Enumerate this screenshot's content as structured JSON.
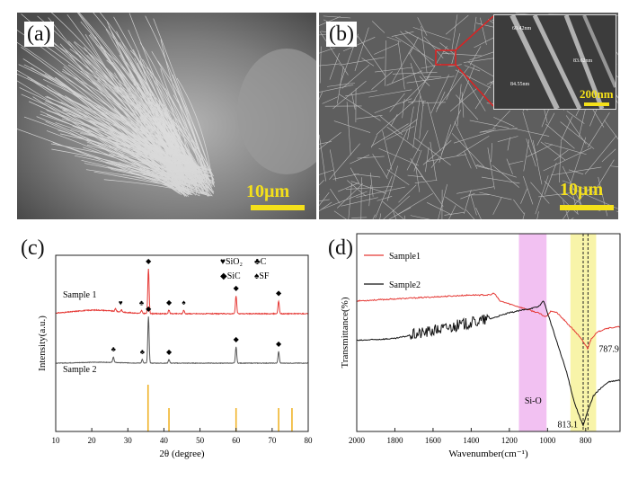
{
  "panels": {
    "a": {
      "letter": "(a)",
      "scale": "10µm"
    },
    "b": {
      "letter": "(b)",
      "scale": "10µm",
      "inset": {
        "scale": "200nm",
        "measures": [
          "60.42nm",
          "83.62nm",
          "84.55nm"
        ]
      }
    },
    "c": {
      "letter": "(c)"
    },
    "d": {
      "letter": "(d)"
    }
  },
  "chart_data": [
    {
      "type": "line",
      "panel": "c",
      "xlabel": "2θ (degree)",
      "ylabel": "Intensity(a.u.)",
      "xlim": [
        10,
        80
      ],
      "xticks": [
        10,
        20,
        30,
        40,
        50,
        60,
        70,
        80
      ],
      "legend": [
        {
          "symbol": "♥",
          "label": "SiO₂"
        },
        {
          "symbol": "♣",
          "label": "C"
        },
        {
          "symbol": "◆",
          "label": "SiC"
        },
        {
          "symbol": "♠",
          "label": "SF"
        }
      ],
      "series": [
        {
          "name": "Sample 1",
          "color": "#e53935",
          "baseline": 0.18,
          "hump": {
            "center": 21,
            "width": 6,
            "height": 0.05
          },
          "peaks": [
            [
              26.6,
              0.04
            ],
            [
              28.2,
              0.03
            ],
            [
              33.8,
              0.04
            ],
            [
              35.7,
              0.62
            ],
            [
              41.4,
              0.05
            ],
            [
              45.5,
              0.05
            ],
            [
              60.0,
              0.25
            ],
            [
              71.8,
              0.18
            ]
          ]
        },
        {
          "name": "Sample 2",
          "color": "#555555",
          "baseline": 0.0,
          "hump": {
            "center": 22,
            "width": 5,
            "height": 0.02
          },
          "peaks": [
            [
              26.0,
              0.12
            ],
            [
              34.0,
              0.08
            ],
            [
              35.7,
              1.0
            ],
            [
              41.4,
              0.08
            ],
            [
              60.0,
              0.35
            ],
            [
              71.8,
              0.25
            ]
          ]
        }
      ],
      "reference_lines": [
        35.6,
        41.4,
        60.0,
        71.8,
        75.5
      ],
      "reference_color": "#f0b429",
      "markers": [
        {
          "x": 28,
          "symbol": "♥",
          "series": "Sample 1"
        },
        {
          "x": 33.8,
          "symbol": "♣",
          "series": "Sample 1"
        },
        {
          "x": 35.7,
          "symbol": "◆",
          "series": "Sample 1"
        },
        {
          "x": 41.4,
          "symbol": "◆",
          "series": "Sample 1"
        },
        {
          "x": 45.5,
          "symbol": "♠",
          "series": "Sample 1"
        },
        {
          "x": 60.0,
          "symbol": "◆",
          "series": "Sample 1"
        },
        {
          "x": 71.8,
          "symbol": "◆",
          "series": "Sample 1"
        },
        {
          "x": 26.0,
          "symbol": "♣",
          "series": "Sample 2"
        },
        {
          "x": 34.0,
          "symbol": "♣",
          "series": "Sample 2"
        },
        {
          "x": 35.7,
          "symbol": "◆",
          "series": "Sample 2"
        },
        {
          "x": 41.4,
          "symbol": "◆",
          "series": "Sample 2"
        },
        {
          "x": 60.0,
          "symbol": "◆",
          "series": "Sample 2"
        },
        {
          "x": 71.8,
          "symbol": "◆",
          "series": "Sample 2"
        }
      ]
    },
    {
      "type": "line",
      "panel": "d",
      "xlabel": "Wavenumber(cm⁻¹)",
      "ylabel": "Transmittance(%)",
      "xlim": [
        2000,
        620
      ],
      "xticks": [
        2000,
        1800,
        1600,
        1400,
        1200,
        1000,
        800
      ],
      "bands": [
        {
          "from": 1150,
          "to": 1005,
          "color": "#f0b6f0"
        },
        {
          "from": 880,
          "to": 745,
          "color": "#f7f29a"
        }
      ],
      "vlines": [
        813.1,
        787.9
      ],
      "annotations": [
        {
          "text": "Si-O",
          "x": 1120
        },
        {
          "text": "813.1",
          "x": 813.1
        },
        {
          "text": "787.9",
          "x": 787.9
        }
      ],
      "series": [
        {
          "name": "Sample1",
          "color": "#e53935",
          "points": [
            [
              2000,
              0.66
            ],
            [
              1800,
              0.67
            ],
            [
              1600,
              0.68
            ],
            [
              1400,
              0.69
            ],
            [
              1300,
              0.69
            ],
            [
              1280,
              0.7
            ],
            [
              1250,
              0.66
            ],
            [
              1150,
              0.63
            ],
            [
              1050,
              0.6
            ],
            [
              1010,
              0.58
            ],
            [
              980,
              0.61
            ],
            [
              950,
              0.6
            ],
            [
              900,
              0.55
            ],
            [
              850,
              0.5
            ],
            [
              810,
              0.45
            ],
            [
              790,
              0.42
            ],
            [
              770,
              0.47
            ],
            [
              740,
              0.5
            ],
            [
              700,
              0.52
            ],
            [
              620,
              0.53
            ]
          ]
        },
        {
          "name": "Sample2",
          "color": "#111111",
          "points": [
            [
              2000,
              0.46
            ],
            [
              1800,
              0.47
            ],
            [
              1600,
              0.51
            ],
            [
              1400,
              0.55
            ],
            [
              1300,
              0.57
            ],
            [
              1200,
              0.6
            ],
            [
              1100,
              0.62
            ],
            [
              1050,
              0.63
            ],
            [
              1020,
              0.66
            ],
            [
              1000,
              0.6
            ],
            [
              950,
              0.45
            ],
            [
              900,
              0.3
            ],
            [
              860,
              0.15
            ],
            [
              830,
              0.07
            ],
            [
              813,
              0.03
            ],
            [
              790,
              0.1
            ],
            [
              760,
              0.18
            ],
            [
              720,
              0.22
            ],
            [
              680,
              0.25
            ],
            [
              620,
              0.26
            ]
          ]
        }
      ]
    }
  ]
}
